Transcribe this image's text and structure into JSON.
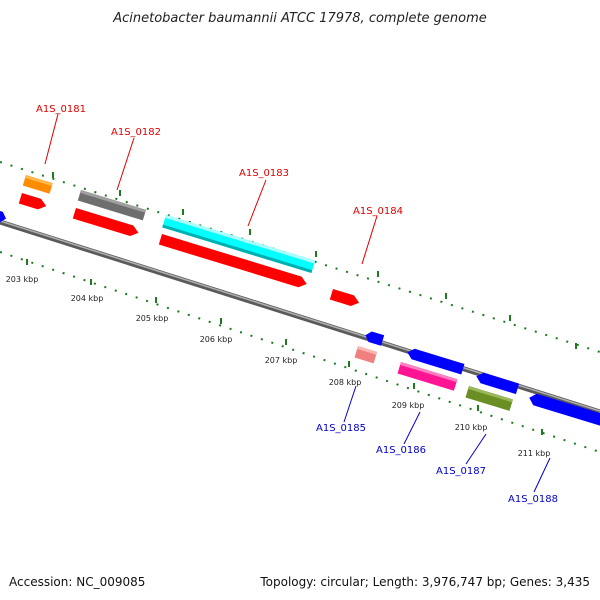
{
  "title": "Acinetobacter baumannii ATCC 17978, complete genome",
  "accession": "Accession: NC_009085",
  "summary": "Topology: circular; Length: 3,976,747 bp; Genes: 3,435",
  "kbp_labels": [
    "203 kbp",
    "204 kbp",
    "205 kbp",
    "206 kbp",
    "207 kbp",
    "208 kbp",
    "209 kbp",
    "210 kbp",
    "211 kbp"
  ],
  "gene_labels": {
    "a1s_0181": "A1S_0181",
    "a1s_0182": "A1S_0182",
    "a1s_0183": "A1S_0183",
    "a1s_0184": "A1S_0184",
    "a1s_0185": "A1S_0185",
    "a1s_0186": "A1S_0186",
    "a1s_0187": "A1S_0187",
    "a1s_0188": "A1S_0188"
  },
  "colors": {
    "backbone": "#8a8a8a",
    "tick": "#1e7a1e",
    "red": "#ff0000",
    "blue": "#0000ff",
    "orange": "#ff8c00",
    "gray": "#6e6e6e",
    "cyan": "#00ffff",
    "pink": "#f08080",
    "magenta": "#ff1493",
    "olive": "#6b8e23",
    "label_red": "#dd0000",
    "label_blue": "#0000cc"
  }
}
